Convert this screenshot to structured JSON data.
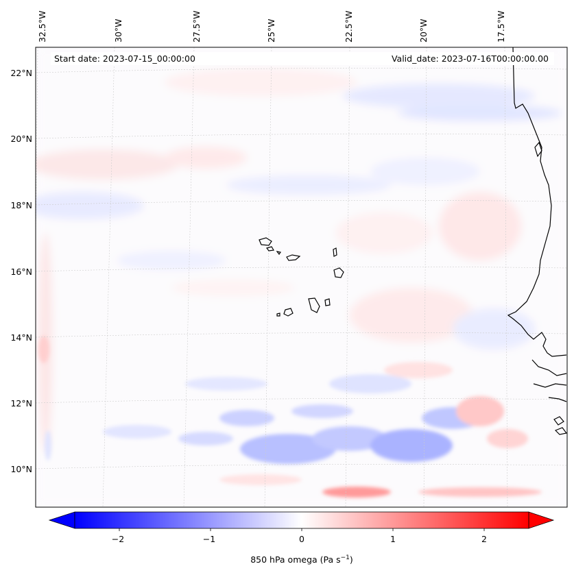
{
  "map": {
    "start_date": "Start date: 2023-07-15_00:00:00",
    "valid_date": "Valid_date: 2023-07-16T00:00:00.00",
    "lon_labels": [
      "32.5°W",
      "30°W",
      "27.5°W",
      "25°W",
      "22.5°W",
      "20°W",
      "17.5°W"
    ],
    "lat_labels": [
      "22°N",
      "20°N",
      "18°N",
      "16°N",
      "14°N",
      "12°N",
      "10°N"
    ]
  },
  "colorbar": {
    "label": "850 hPa omega (Pa s",
    "label_sup": "−1",
    "label_close": ")",
    "ticks": [
      "−2",
      "−1",
      "0",
      "1",
      "2"
    ],
    "range": [
      -2.5,
      2.5
    ],
    "extend": "both",
    "colormap": "bwr",
    "colors": {
      "low": "#0000ff",
      "mid": "#ffffff",
      "high": "#ff0000"
    }
  }
}
